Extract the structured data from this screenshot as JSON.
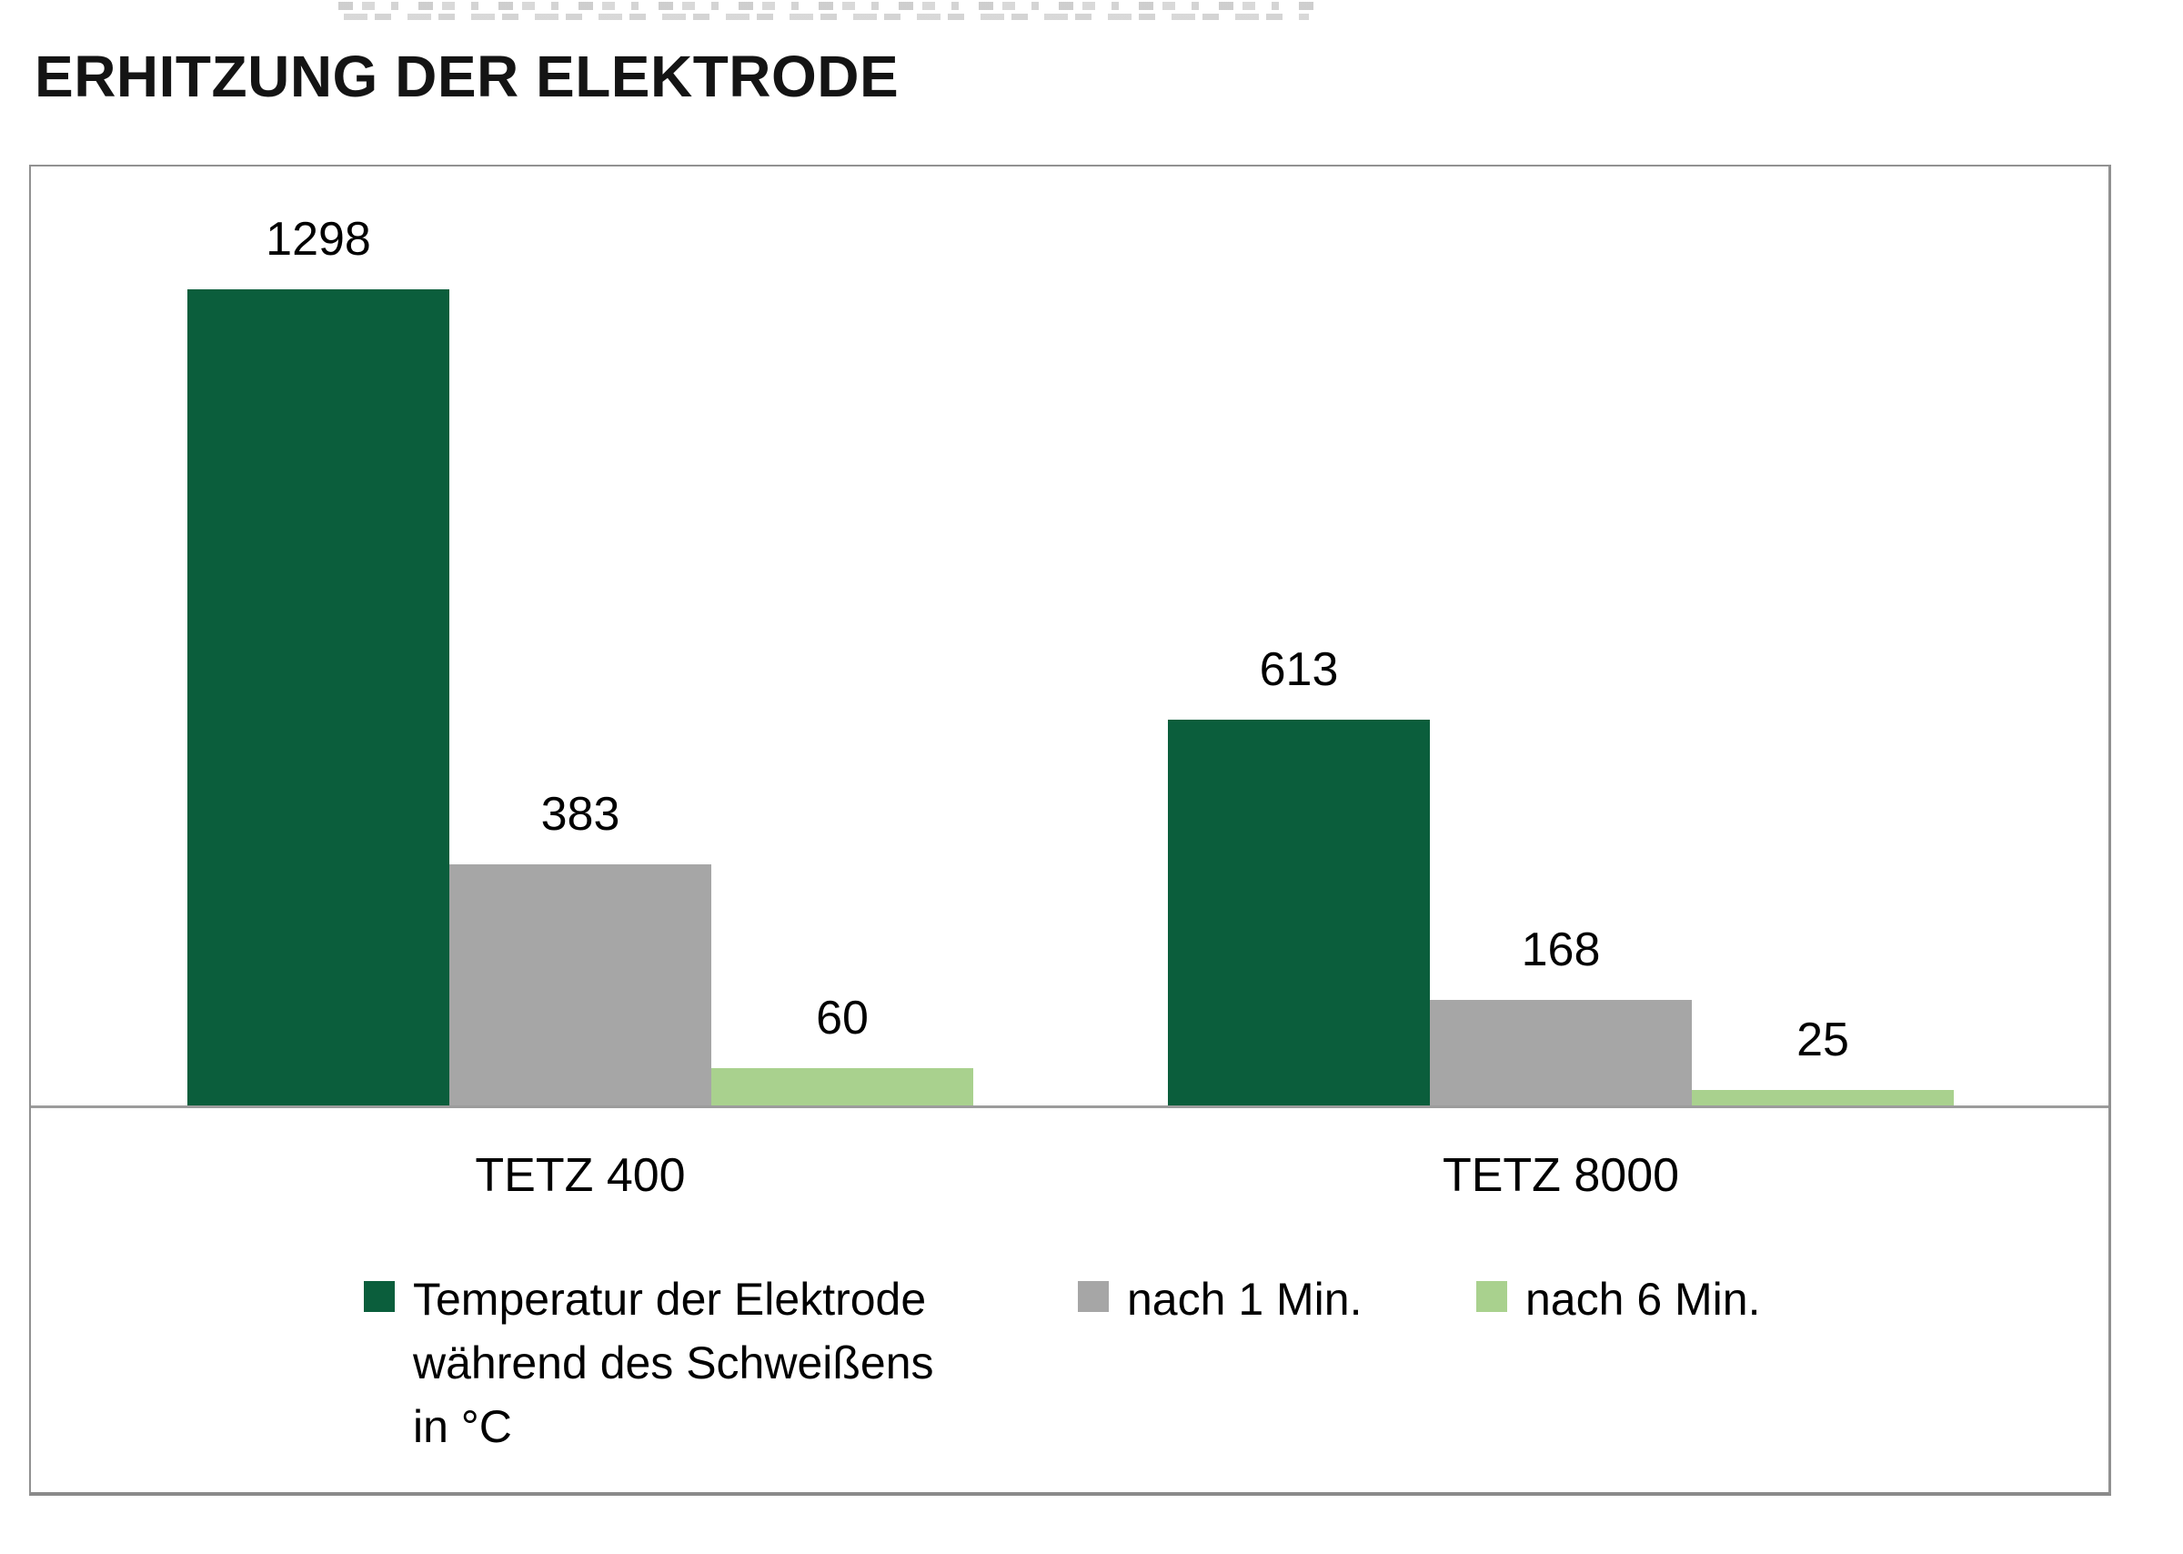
{
  "page": {
    "title": "ERHITZUNG DER ELEKTRODE"
  },
  "chart_data": {
    "type": "bar",
    "title": "ERHITZUNG DER ELEKTRODE",
    "categories": [
      "TETZ 400",
      "TETZ 8000"
    ],
    "series": [
      {
        "name": "Temperatur der Elektrode\nwährend des Schweißens\nin °C",
        "values": [
          1298,
          613
        ],
        "color": "#0b5e3c"
      },
      {
        "name": "nach 1 Min.",
        "values": [
          383,
          168
        ],
        "color": "#a6a6a6"
      },
      {
        "name": "nach 6 Min.",
        "values": [
          60,
          25
        ],
        "color": "#a9d18e"
      }
    ],
    "value_labels_shown": true,
    "y_axis_hidden": true,
    "grid": false,
    "legend_position": "bottom",
    "ylim": [
      0,
      1400
    ],
    "colors": {
      "axis_line": "#9c9c9c",
      "frame_border": "#919191",
      "label_text": "#000000"
    }
  }
}
